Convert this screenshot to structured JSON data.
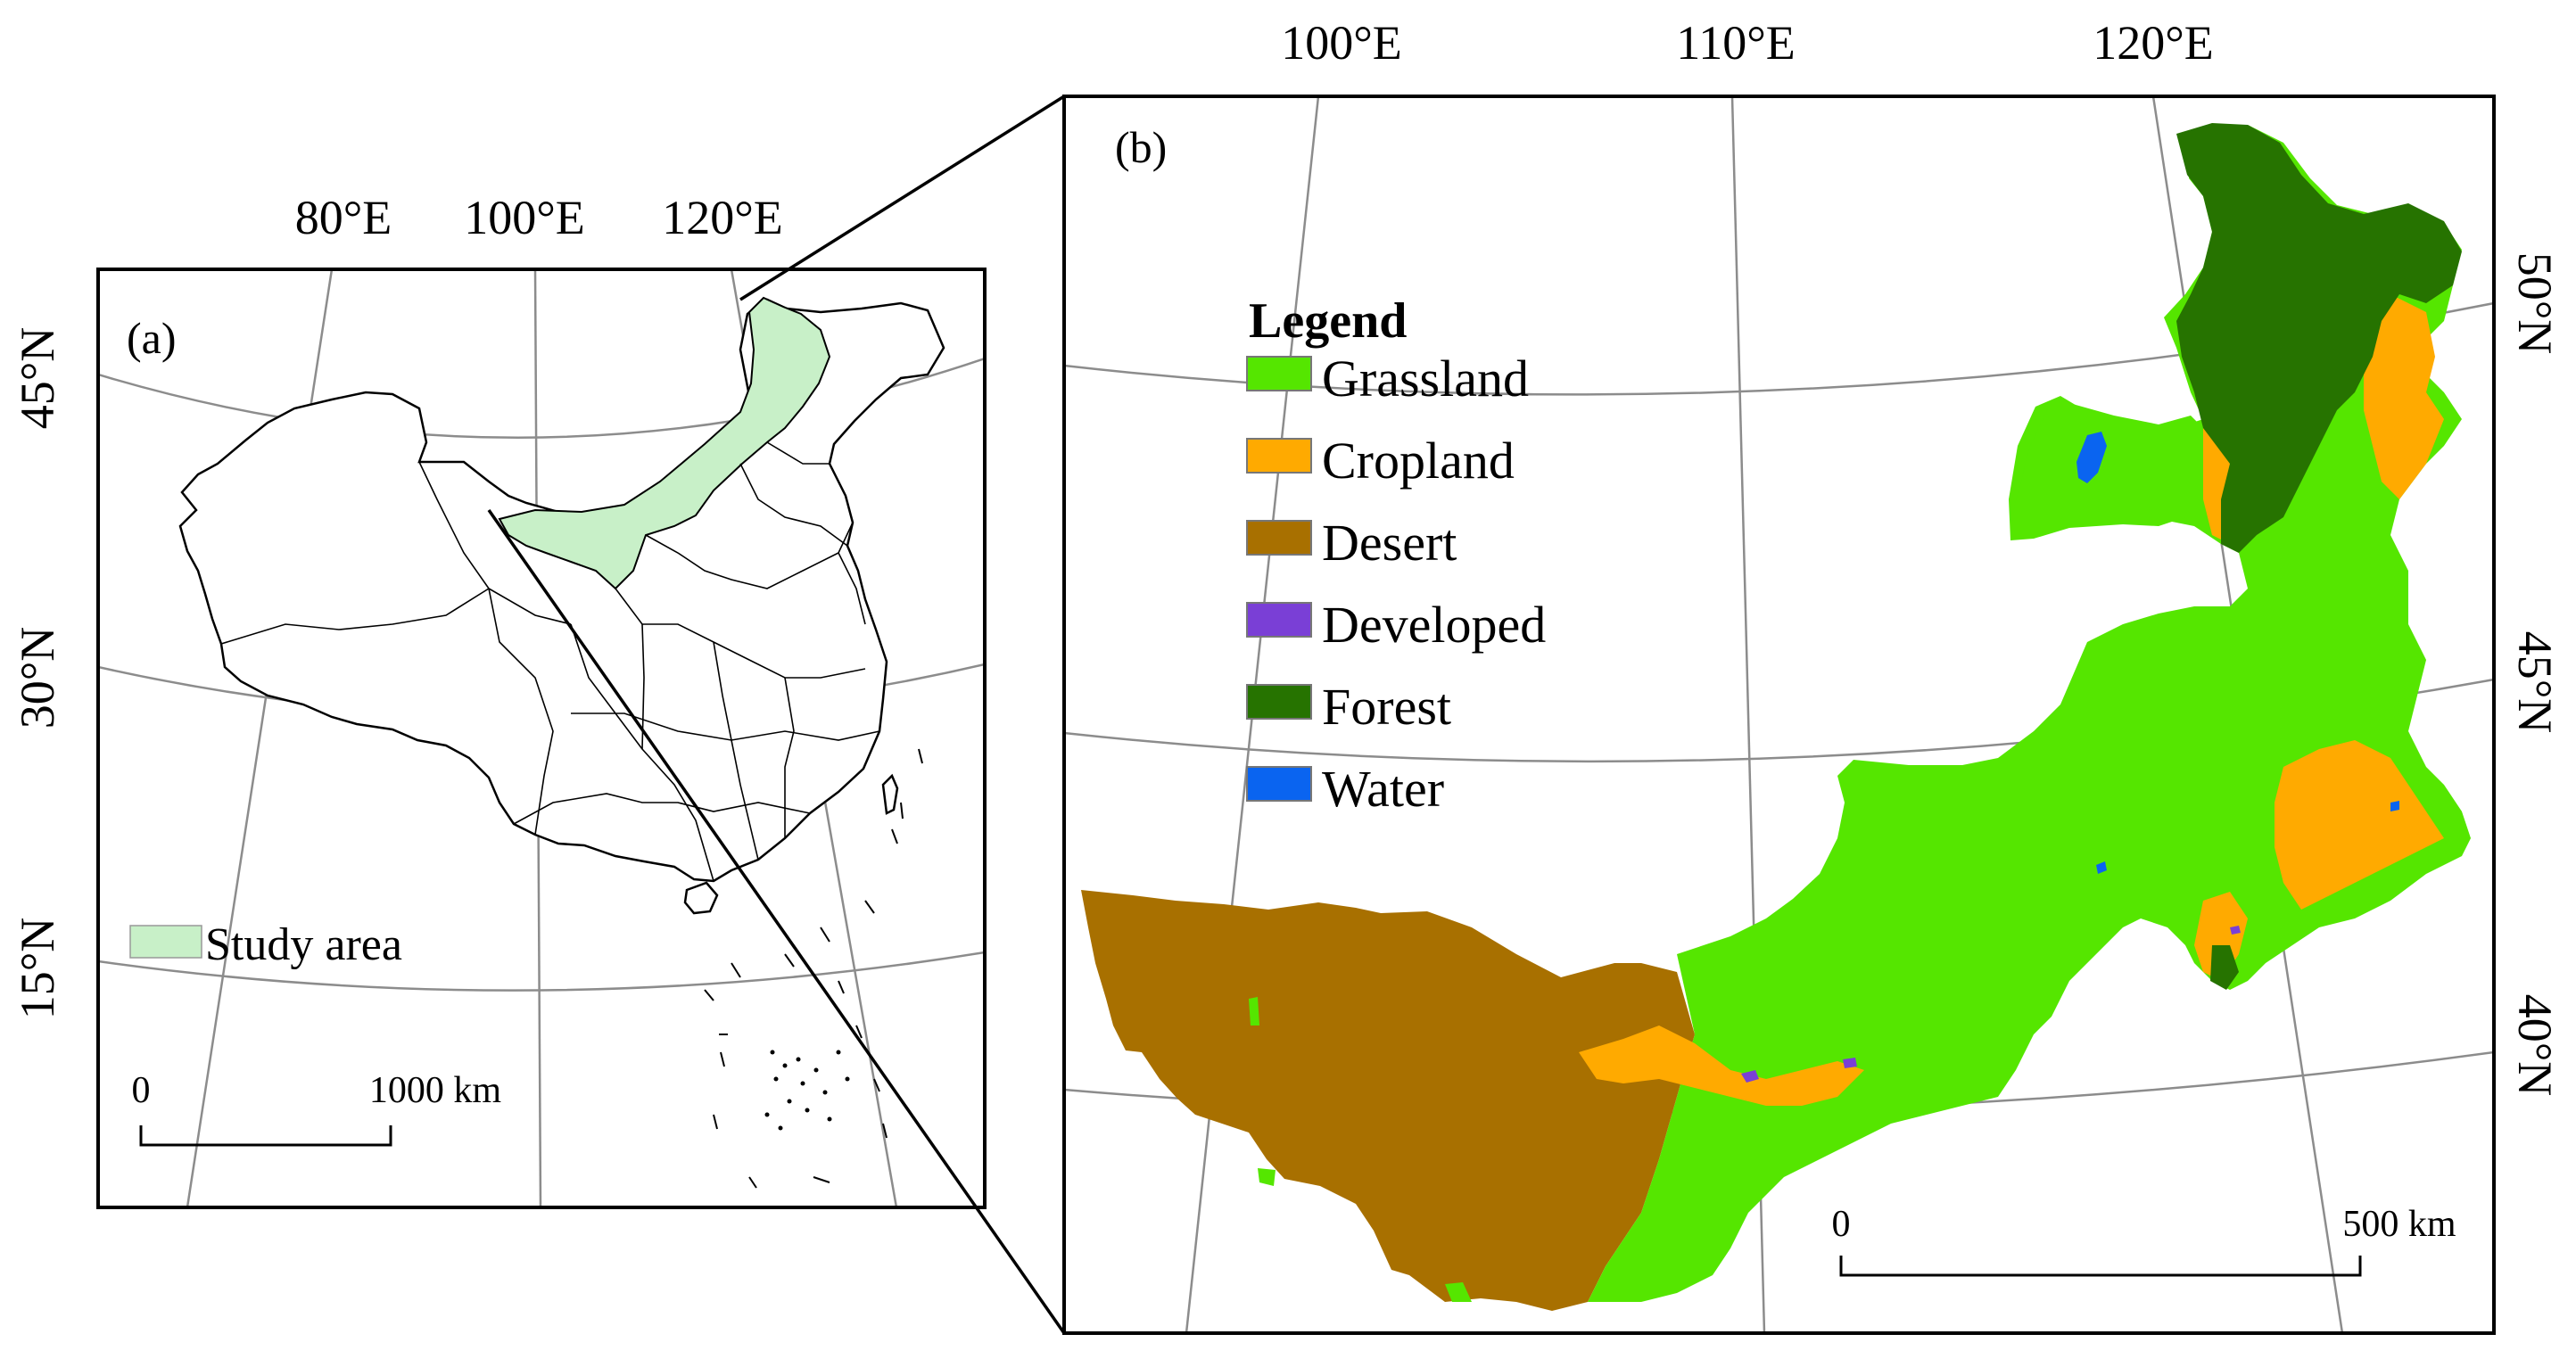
{
  "panel_a": {
    "label": "(a)",
    "longitudes": [
      "80°E",
      "100°E",
      "120°E"
    ],
    "latitudes": [
      "45°N",
      "30°N",
      "15°N"
    ],
    "legend_item": "Study area",
    "scale_start": "0",
    "scale_end": "1000 km"
  },
  "panel_b": {
    "label": "(b)",
    "longitudes": [
      "100°E",
      "110°E",
      "120°E"
    ],
    "latitudes": [
      "50°N",
      "45°N",
      "40°N"
    ],
    "legend_title": "Legend",
    "legend_items": [
      {
        "label": "Grassland",
        "color": "#55e600"
      },
      {
        "label": "Cropland",
        "color": "#ffaa00"
      },
      {
        "label": "Desert",
        "color": "#a87000"
      },
      {
        "label": "Developed",
        "color": "#7a3fd6"
      },
      {
        "label": "Forest",
        "color": "#267300"
      },
      {
        "label": "Water",
        "color": "#0a64f0"
      }
    ],
    "scale_start": "0",
    "scale_end": "500 km"
  },
  "colors": {
    "study_area_fill": "#c8f0c8",
    "graticule": "#8c8c8c",
    "frame": "#000000"
  }
}
